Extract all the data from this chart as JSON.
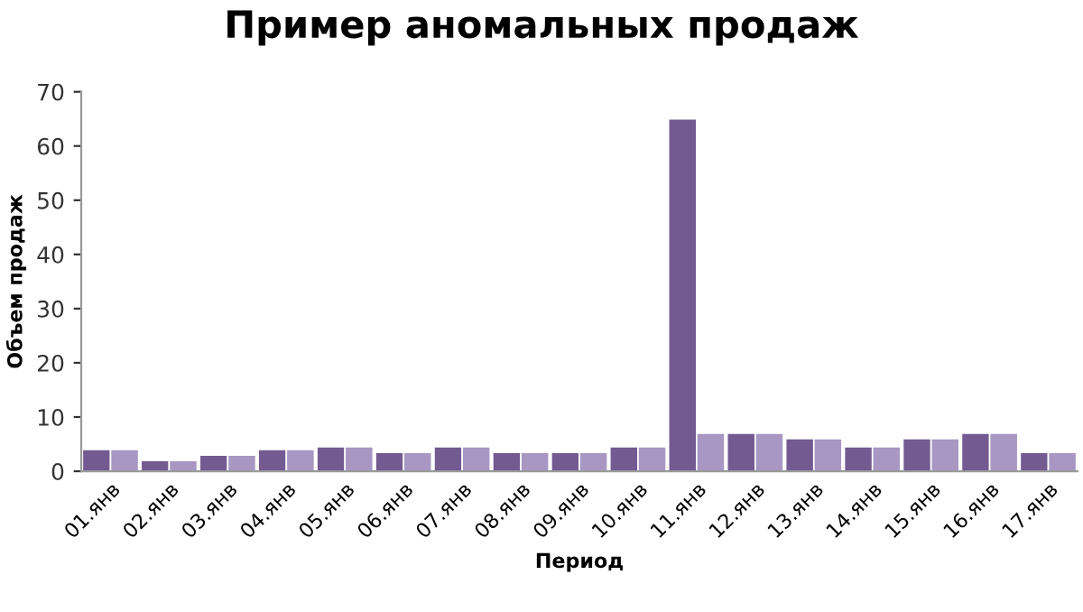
{
  "chart_data": {
    "type": "bar",
    "title": "Пример аномальных продаж",
    "xlabel": "Период",
    "ylabel": "Объем продаж",
    "categories": [
      "01.янв",
      "02.янв",
      "03.янв",
      "04.янв",
      "05.янв",
      "06.янв",
      "07.янв",
      "08.янв",
      "09.янв",
      "10.янв",
      "11.янв",
      "12.янв",
      "13.янв",
      "14.янв",
      "15.янв",
      "16.янв",
      "17.янв"
    ],
    "series": [
      {
        "color": "#735a91",
        "values": [
          4,
          2,
          3,
          4,
          4.5,
          3.5,
          4.5,
          3.5,
          3.5,
          4.5,
          65,
          7,
          6,
          4.5,
          6,
          7,
          3.5
        ]
      },
      {
        "color": "#a897c2",
        "values": [
          4,
          2,
          3,
          4,
          4.5,
          3.5,
          4.5,
          3.5,
          3.5,
          4.5,
          7,
          7,
          6,
          4.5,
          6,
          7,
          3.5
        ]
      }
    ],
    "ylim": [
      0,
      70
    ],
    "yticks": [
      0,
      10,
      20,
      30,
      40,
      50,
      60,
      70
    ],
    "grid": false,
    "legend": false
  }
}
